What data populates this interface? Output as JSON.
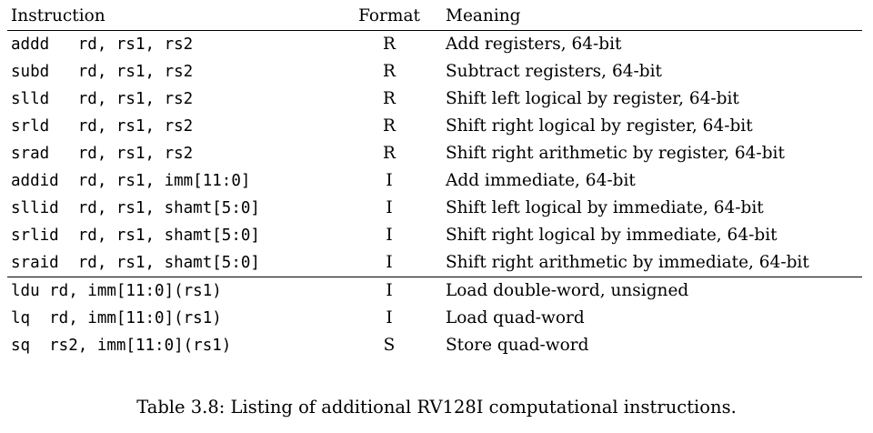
{
  "table": {
    "headers": {
      "instruction": "Instruction",
      "format": "Format",
      "meaning": "Meaning"
    },
    "rows": [
      {
        "instruction": "addd   rd, rs1, rs2",
        "format": "R",
        "meaning": "Add registers, 64-bit"
      },
      {
        "instruction": "subd   rd, rs1, rs2",
        "format": "R",
        "meaning": "Subtract registers, 64-bit"
      },
      {
        "instruction": "slld   rd, rs1, rs2",
        "format": "R",
        "meaning": "Shift left logical by register, 64-bit"
      },
      {
        "instruction": "srld   rd, rs1, rs2",
        "format": "R",
        "meaning": "Shift right logical by register, 64-bit"
      },
      {
        "instruction": "srad   rd, rs1, rs2",
        "format": "R",
        "meaning": "Shift right arithmetic by register, 64-bit"
      },
      {
        "instruction": "addid  rd, rs1, imm[11:0]",
        "format": "I",
        "meaning": "Add immediate, 64-bit"
      },
      {
        "instruction": "sllid  rd, rs1, shamt[5:0]",
        "format": "I",
        "meaning": "Shift left logical by immediate, 64-bit"
      },
      {
        "instruction": "srlid  rd, rs1, shamt[5:0]",
        "format": "I",
        "meaning": "Shift right logical by immediate, 64-bit"
      },
      {
        "instruction": "sraid  rd, rs1, shamt[5:0]",
        "format": "I",
        "meaning": "Shift right arithmetic by immediate, 64-bit"
      },
      {
        "instruction": "ldu rd, imm[11:0](rs1)",
        "format": "I",
        "meaning": "Load double-word, unsigned"
      },
      {
        "instruction": "lq  rd, imm[11:0](rs1)",
        "format": "I",
        "meaning": "Load quad-word"
      },
      {
        "instruction": "sq  rs2, imm[11:0](rs1)",
        "format": "S",
        "meaning": "Store quad-word"
      }
    ]
  },
  "caption": "Table 3.8: Listing of additional RV128I computational instructions."
}
